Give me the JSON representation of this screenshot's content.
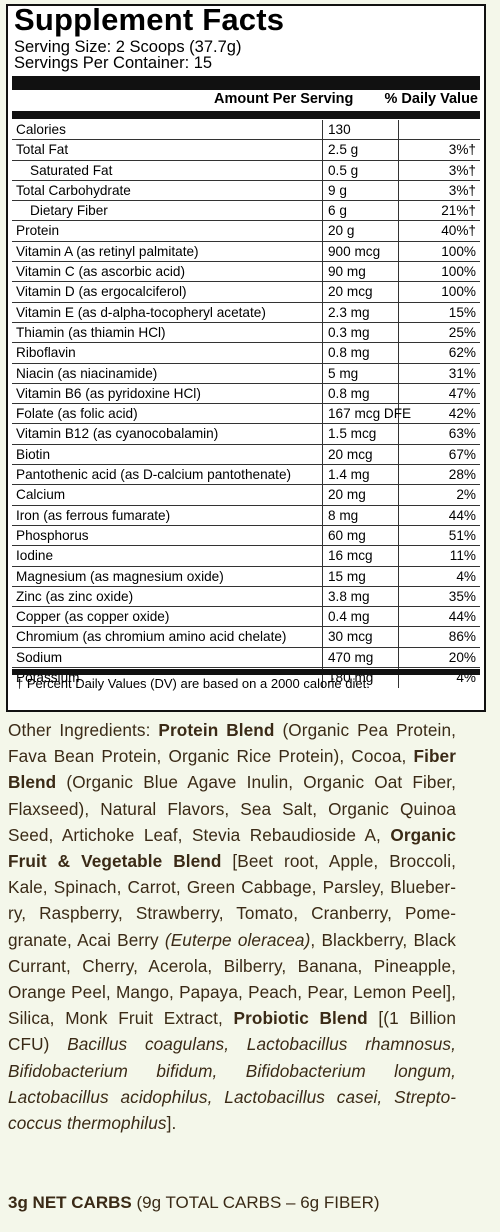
{
  "title": "Supplement Facts",
  "serving_size": "Serving Size: 2 Scoops (37.7g)",
  "servings_per_container": "Servings Per Container: 15",
  "headers": {
    "amount": "Amount Per Serving",
    "daily_value": "% Daily Value"
  },
  "nutrients": [
    {
      "name": "Calories",
      "amount": "130",
      "dv": ""
    },
    {
      "name": "Total Fat",
      "amount": "2.5 g",
      "dv": "3%†"
    },
    {
      "name": "Saturated Fat",
      "amount": "0.5 g",
      "dv": "3%†",
      "indent": true
    },
    {
      "name": "Total Carbohydrate",
      "amount": "9 g",
      "dv": "3%†"
    },
    {
      "name": "Dietary Fiber",
      "amount": "6 g",
      "dv": "21%†",
      "indent": true
    },
    {
      "name": "Protein",
      "amount": "20 g",
      "dv": "40%†"
    },
    {
      "name": "Vitamin A (as retinyl palmitate)",
      "amount": "900 mcg",
      "dv": "100%"
    },
    {
      "name": "Vitamin C (as ascorbic acid)",
      "amount": "90 mg",
      "dv": "100%"
    },
    {
      "name": "Vitamin D (as ergocalciferol)",
      "amount": "20 mcg",
      "dv": "100%"
    },
    {
      "name": "Vitamin E (as d-alpha-tocopheryl acetate)",
      "amount": "2.3 mg",
      "dv": "15%"
    },
    {
      "name": "Thiamin (as thiamin HCl)",
      "amount": "0.3 mg",
      "dv": "25%"
    },
    {
      "name": "Riboflavin",
      "amount": "0.8 mg",
      "dv": "62%"
    },
    {
      "name": "Niacin (as niacinamide)",
      "amount": "5 mg",
      "dv": "31%"
    },
    {
      "name": "Vitamin B6 (as pyridoxine HCl)",
      "amount": "0.8 mg",
      "dv": "47%"
    },
    {
      "name": "Folate (as folic acid)",
      "amount": "167 mcg DFE",
      "dv": "42%"
    },
    {
      "name": "Vitamin B12 (as cyanocobalamin)",
      "amount": "1.5 mcg",
      "dv": "63%"
    },
    {
      "name": "Biotin",
      "amount": "20 mcg",
      "dv": "67%"
    },
    {
      "name": "Pantothenic acid (as D-calcium pantothenate)",
      "amount": "1.4 mg",
      "dv": "28%"
    },
    {
      "name": "Calcium",
      "amount": "20 mg",
      "dv": "2%"
    },
    {
      "name": "Iron (as ferrous fumarate)",
      "amount": "8 mg",
      "dv": "44%"
    },
    {
      "name": "Phosphorus",
      "amount": "60 mg",
      "dv": "51%"
    },
    {
      "name": "Iodine",
      "amount": "16 mcg",
      "dv": "11%"
    },
    {
      "name": "Magnesium (as magnesium oxide)",
      "amount": "15 mg",
      "dv": "4%"
    },
    {
      "name": "Zinc (as zinc oxide)",
      "amount": "3.8 mg",
      "dv": "35%"
    },
    {
      "name": "Copper (as copper oxide)",
      "amount": "0.4 mg",
      "dv": "44%"
    },
    {
      "name": "Chromium (as chromium amino acid chelate)",
      "amount": "30 mcg",
      "dv": "86%"
    },
    {
      "name": "Sodium",
      "amount": "470 mg",
      "dv": "20%"
    },
    {
      "name": "Potassium",
      "amount": "180 mg",
      "dv": "4%"
    }
  ],
  "footnote": "† Percent Daily Values (DV) are based on a 2000 calorie diet.",
  "ingredients": [
    {
      "t": "Other Ingredients: "
    },
    {
      "t": "Protein Blend",
      "b": true
    },
    {
      "t": " (Organic Pea Protein, Fava Bean Protein, Organic Rice Protein), Cocoa, "
    },
    {
      "t": "Fiber Blend",
      "b": true
    },
    {
      "t": " (Organic Blue Agave Inulin, Organic Oat Fiber, Flaxseed), Natural Flavors, Sea Salt, Organic Quinoa Seed, Artichoke Leaf, Stevia Rebaudioside A, "
    },
    {
      "t": "Organic Fruit & Vegetable Blend",
      "b": true
    },
    {
      "t": " [Beet root, Apple, Broccoli, Kale, Spinach, Carrot, Green Cabbage, Parsley, Blueber­ry, Raspberry, Strawberry, Tomato, Cranberry, Pome­granate, Acai Berry "
    },
    {
      "t": "(Euterpe oleracea)",
      "i": true
    },
    {
      "t": ", Blackberry, Black Currant, Cherry, Acerola, Bilberry, Banana, Pine­apple, Orange Peel, Mango, Papaya, Peach, Pear, Lemon Peel], Silica, Monk Fruit Extract,  "
    },
    {
      "t": "Probiotic Blend",
      "b": true
    },
    {
      "t": " [(1 Billion CFU) "
    },
    {
      "t": "Bacillus coagulans, Lactobacillus rhamno­sus, Bifidobacterium bifidum, Bifidobacterium longum, Lactobacillus acidophilus, Lactobacillus casei, Strepto­coccus thermophilus",
      "i": true
    },
    {
      "t": "]."
    }
  ],
  "net_carbs": {
    "bold": "3g NET CARBS",
    "rest": " (9g TOTAL CARBS – 6g FIBER)"
  }
}
